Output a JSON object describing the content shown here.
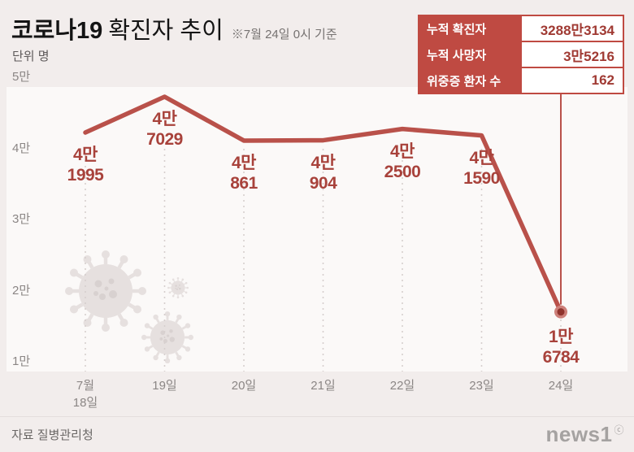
{
  "title": {
    "main": "코로나19",
    "sub": "확진자 추이",
    "note": "※7월 24일 0시 기준"
  },
  "unit_label": "단위 명",
  "stats_box": {
    "rows": [
      {
        "label": "누적 확진자",
        "value": "3288만3134"
      },
      {
        "label": "누적 사망자",
        "value": "3만5216"
      },
      {
        "label": "위중증 환자 수",
        "value": "162"
      }
    ]
  },
  "chart_data": {
    "type": "line",
    "title": "코로나19 확진자 추이",
    "categories": [
      "7월 18일",
      "19일",
      "20일",
      "21일",
      "22일",
      "23일",
      "24일"
    ],
    "values": [
      41995,
      47029,
      40861,
      40904,
      42500,
      41590,
      16784
    ],
    "point_labels": [
      "4만\n1995",
      "4만\n7029",
      "4만\n861",
      "4만\n904",
      "4만\n2500",
      "4만\n1590",
      "1만\n6784"
    ],
    "x_label_display": [
      "7월\n18일",
      "19일",
      "20일",
      "21일",
      "22일",
      "23일",
      "24일"
    ],
    "y_ticks": [
      {
        "label": "5만",
        "value": 50000
      },
      {
        "label": "4만",
        "value": 40000
      },
      {
        "label": "3만",
        "value": 30000
      },
      {
        "label": "2만",
        "value": 20000
      },
      {
        "label": "1만",
        "value": 10000
      }
    ],
    "ylim": [
      10000,
      50000
    ],
    "xlabel": "",
    "ylabel": "명",
    "grid": "vertical-dashed",
    "legend": "none",
    "line_color": "#b9514a",
    "label_color": "#a8423b",
    "marker_outer_color": "#cd807a",
    "marker_inner_color": "#8f332d"
  },
  "colors": {
    "background": "#f2edec",
    "plot_background": "#fbf9f8",
    "accent_red": "#bf4a42",
    "virus_gray": "#e6e0df"
  },
  "icons": {
    "decoration": "coronavirus-icon",
    "copyright": "ⓒ"
  },
  "footer": {
    "source": "자료 질병관리청",
    "logo": "news1",
    "copyright": "ⓒ"
  }
}
